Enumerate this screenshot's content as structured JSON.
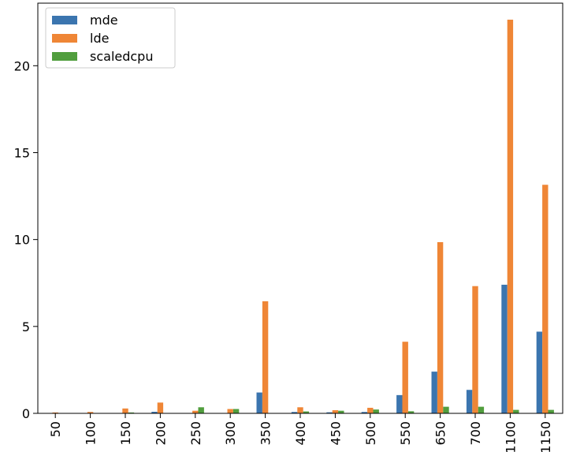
{
  "chart_data": {
    "type": "bar",
    "categories": [
      "50",
      "100",
      "150",
      "200",
      "250",
      "300",
      "350",
      "400",
      "450",
      "500",
      "550",
      "650",
      "700",
      "1100",
      "1150"
    ],
    "series": [
      {
        "name": "mde",
        "color": "#3b75af",
        "values": [
          0.01,
          0.01,
          0.02,
          0.09,
          0.02,
          0.02,
          1.2,
          0.08,
          0.06,
          0.08,
          1.05,
          2.4,
          1.35,
          7.4,
          4.7
        ]
      },
      {
        "name": "lde",
        "color": "#ef8636",
        "values": [
          0.05,
          0.08,
          0.28,
          0.62,
          0.15,
          0.25,
          6.45,
          0.35,
          0.18,
          0.32,
          4.12,
          9.85,
          7.32,
          22.65,
          13.15
        ]
      },
      {
        "name": "scaledcpu",
        "color": "#519e3e",
        "values": [
          0.0,
          0.01,
          0.05,
          0.01,
          0.35,
          0.25,
          0.01,
          0.11,
          0.15,
          0.22,
          0.12,
          0.38,
          0.38,
          0.2,
          0.2
        ]
      }
    ],
    "yticks": [
      "0",
      "5",
      "10",
      "15",
      "20"
    ],
    "ylim": [
      0,
      23.6
    ],
    "legend_position": "top-left",
    "grid": false
  }
}
